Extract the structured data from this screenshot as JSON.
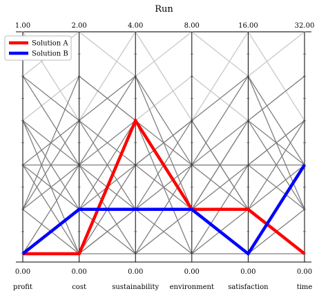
{
  "chart_data": {
    "type": "line",
    "subtype": "parallel-coordinates",
    "title": "Run",
    "axes": [
      "profit",
      "cost",
      "sustainability",
      "environment",
      "satisfaction",
      "time"
    ],
    "top_tick_labels": [
      "1.00",
      "2.00",
      "4.00",
      "8.00",
      "16.00",
      "32.00"
    ],
    "bottom_tick_labels": [
      "0.00",
      "0.00",
      "0.00",
      "0.00",
      "0.00",
      "0.00"
    ],
    "ylim": [
      0,
      1
    ],
    "background_lines": [
      [
        1.0,
        1.0,
        1.0,
        1.0,
        1.0,
        1.0
      ],
      [
        0.8,
        1.0,
        0.8,
        1.0,
        0.8,
        1.0
      ],
      [
        1.0,
        0.6,
        1.0,
        0.6,
        1.0,
        0.6
      ],
      [
        0.6,
        0.8,
        0.6,
        0.8,
        0.6,
        0.8
      ],
      [
        0.8,
        0.6,
        0.4,
        0.6,
        0.8,
        0.4
      ],
      [
        0.4,
        0.6,
        0.8,
        0.4,
        0.6,
        0.8
      ],
      [
        0.6,
        0.4,
        0.6,
        0.4,
        0.4,
        0.6
      ],
      [
        0.2,
        0.4,
        0.2,
        0.4,
        0.2,
        0.4
      ],
      [
        0.4,
        0.2,
        0.4,
        0.2,
        0.4,
        0.2
      ],
      [
        0.0,
        0.2,
        0.0,
        0.2,
        0.0,
        0.2
      ],
      [
        0.2,
        0.0,
        0.2,
        0.0,
        0.2,
        0.0
      ],
      [
        0.6,
        0.2,
        0.6,
        0.2,
        0.6,
        0.2
      ],
      [
        0.2,
        0.6,
        0.2,
        0.6,
        0.2,
        0.6
      ],
      [
        0.4,
        0.4,
        0.4,
        0.4,
        0.4,
        0.4
      ],
      [
        0.0,
        0.0,
        0.0,
        0.0,
        0.0,
        0.0
      ],
      [
        0.8,
        0.4,
        0.0,
        0.4,
        0.8,
        0.2
      ],
      [
        0.0,
        0.4,
        0.8,
        0.2,
        0.0,
        0.4
      ],
      [
        0.6,
        0.0,
        0.4,
        0.6,
        0.2,
        0.0
      ],
      [
        0.2,
        0.8,
        0.6,
        0.0,
        0.4,
        0.6
      ],
      [
        0.4,
        0.0,
        0.2,
        0.2,
        0.6,
        0.4
      ]
    ],
    "series": [
      {
        "name": "Solution A",
        "color": "#ff0000",
        "values": [
          0.0,
          0.0,
          0.6,
          0.2,
          0.2,
          0.0
        ]
      },
      {
        "name": "Solution B",
        "color": "#0000ff",
        "values": [
          0.0,
          0.2,
          0.2,
          0.2,
          0.0,
          0.4
        ]
      }
    ],
    "legend_position": "top-left",
    "grid": false
  }
}
